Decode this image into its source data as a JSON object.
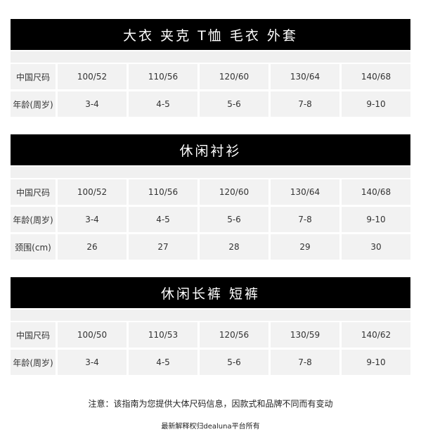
{
  "sections": [
    {
      "title": "大衣 夹克 T恤 毛衣 外套",
      "rows": [
        {
          "label": "中国尺码",
          "values": [
            "100/52",
            "110/56",
            "120/60",
            "130/64",
            "140/68"
          ]
        },
        {
          "label": "年龄(周岁)",
          "values": [
            "3-4",
            "4-5",
            "5-6",
            "7-8",
            "9-10"
          ]
        }
      ]
    },
    {
      "title": "休闲衬衫",
      "rows": [
        {
          "label": "中国尺码",
          "values": [
            "100/52",
            "110/56",
            "120/60",
            "130/64",
            "140/68"
          ]
        },
        {
          "label": "年龄(周岁)",
          "values": [
            "3-4",
            "4-5",
            "5-6",
            "7-8",
            "9-10"
          ]
        },
        {
          "label": "颈围(cm)",
          "values": [
            "26",
            "27",
            "28",
            "29",
            "30"
          ]
        }
      ]
    },
    {
      "title": "休闲长裤 短裤",
      "rows": [
        {
          "label": "中国尺码",
          "values": [
            "100/50",
            "110/53",
            "120/56",
            "130/59",
            "140/62"
          ]
        },
        {
          "label": "年龄(周岁)",
          "values": [
            "3-4",
            "4-5",
            "5-6",
            "7-8",
            "9-10"
          ]
        }
      ]
    }
  ],
  "notes": {
    "disclaimer": "注意：该指南为您提供大体尺码信息，因款式和品牌不同而有变动",
    "rights": "最新解释权归dealuna平台所有"
  }
}
